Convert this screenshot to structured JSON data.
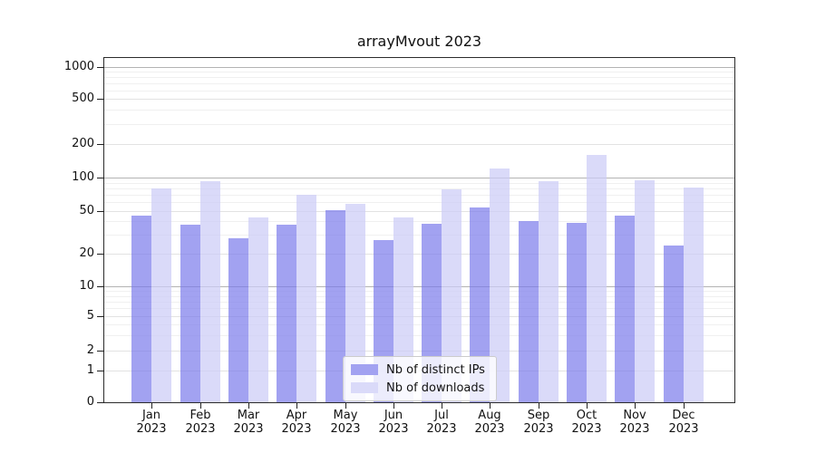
{
  "chart_data": {
    "type": "bar",
    "title": "arrayMvout 2023",
    "categories": [
      "Jan 2023",
      "Feb 2023",
      "Mar 2023",
      "Apr 2023",
      "May 2023",
      "Jun 2023",
      "Jul 2023",
      "Aug 2023",
      "Sep 2023",
      "Oct 2023",
      "Nov 2023",
      "Dec 2023"
    ],
    "series": [
      {
        "name": "Nb of distinct IPs",
        "color": "#a2a2f1",
        "fill_rgba": "rgba(122,122,235,0.7)",
        "values": [
          45,
          37,
          28,
          37,
          51,
          27,
          38,
          54,
          40,
          39,
          45,
          24
        ]
      },
      {
        "name": "Nb of downloads",
        "color": "#dadaf9",
        "fill_rgba": "rgba(204,204,247,0.72)",
        "values": [
          80,
          92,
          44,
          70,
          58,
          44,
          78,
          120,
          92,
          160,
          94,
          82
        ]
      }
    ],
    "xlabel": "",
    "ylabel": "",
    "yscale": "log-with-zero",
    "yticks": [
      0,
      1,
      2,
      5,
      10,
      20,
      50,
      100,
      200,
      500,
      1000
    ],
    "ylim": [
      0,
      1200
    ],
    "grid": true,
    "legend_position": "lower center"
  }
}
